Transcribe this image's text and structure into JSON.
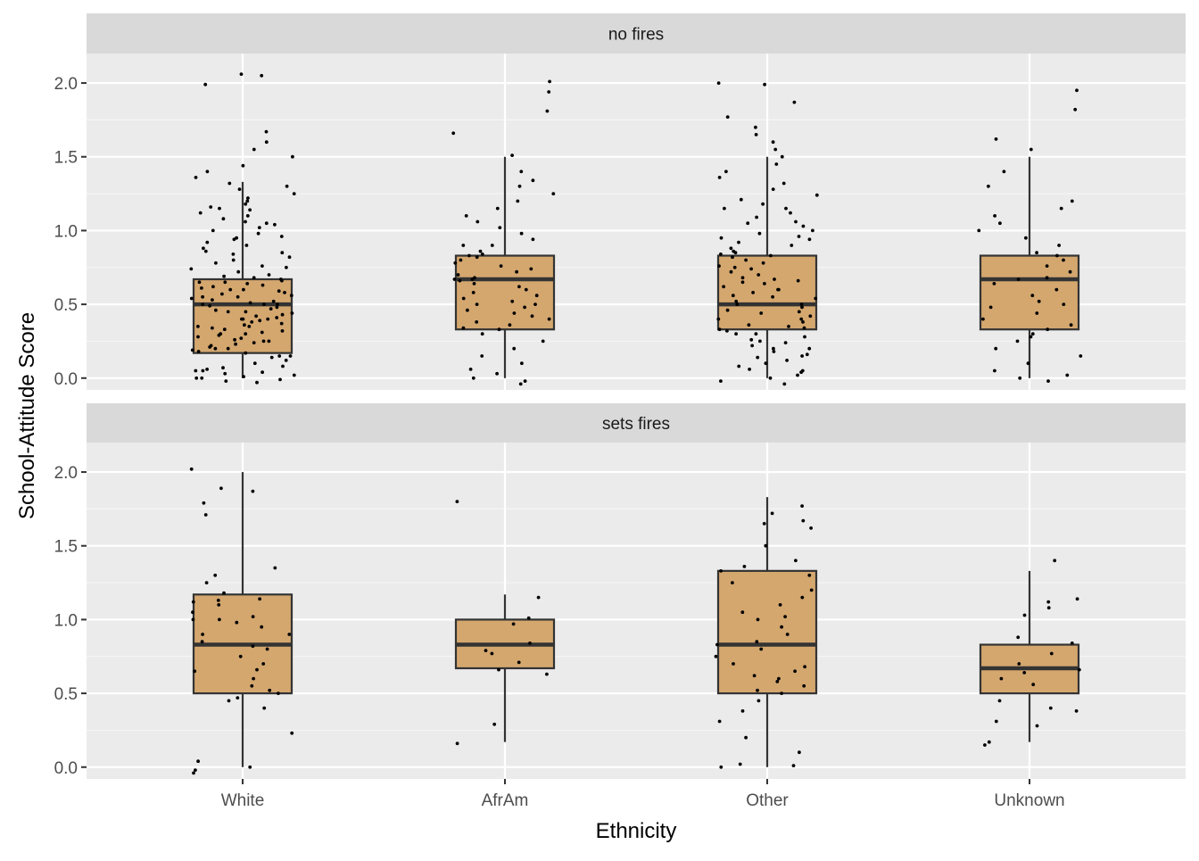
{
  "chart_data": {
    "type": "boxplot",
    "xlabel": "Ethnicity",
    "ylabel": "School-Attitude Score",
    "categories": [
      "White",
      "AfrAm",
      "Other",
      "Unknown"
    ],
    "y_ticks": [
      "0.0",
      "0.5",
      "1.0",
      "1.5",
      "2.0"
    ],
    "ylim": [
      -0.08,
      2.2
    ],
    "grid": true,
    "colors": {
      "panel_bg": "#EBEBEB",
      "strip_bg": "#D9D9D9",
      "box_fill": "#D4A76F",
      "box_stroke": "#333333",
      "grid": "#FFFFFF",
      "points": "#000000"
    },
    "panels": [
      {
        "label": "no fires",
        "boxes": [
          {
            "category": "White",
            "lower_whisker": 0.0,
            "q1": 0.17,
            "median": 0.5,
            "q3": 0.67,
            "upper_whisker": 1.33
          },
          {
            "category": "AfrAm",
            "lower_whisker": 0.0,
            "q1": 0.33,
            "median": 0.67,
            "q3": 0.83,
            "upper_whisker": 1.5
          },
          {
            "category": "Other",
            "lower_whisker": 0.0,
            "q1": 0.33,
            "median": 0.5,
            "q3": 0.83,
            "upper_whisker": 1.5
          },
          {
            "category": "Unknown",
            "lower_whisker": 0.0,
            "q1": 0.33,
            "median": 0.67,
            "q3": 0.83,
            "upper_whisker": 1.5
          }
        ],
        "points": [
          [
            -0.03,
            -0.02,
            -0.01,
            0.0,
            0.01,
            0.02,
            0.03,
            0.04,
            0.05,
            0.06,
            0.07,
            0.08,
            0.1,
            0.12,
            0.14,
            0.15,
            0.17,
            0.18,
            0.19,
            0.2,
            0.21,
            0.22,
            0.23,
            0.24,
            0.25,
            0.26,
            0.27,
            0.28,
            0.29,
            0.3,
            0.31,
            0.32,
            0.33,
            0.34,
            0.35,
            0.36,
            0.37,
            0.38,
            0.39,
            0.4,
            0.41,
            0.42,
            0.43,
            0.44,
            0.45,
            0.46,
            0.47,
            0.48,
            0.49,
            0.5,
            0.51,
            0.52,
            0.53,
            0.54,
            0.55,
            0.56,
            0.57,
            0.58,
            0.59,
            0.6,
            0.61,
            0.62,
            0.63,
            0.64,
            0.65,
            0.66,
            0.67,
            0.68,
            0.69,
            0.7,
            0.72,
            0.74,
            0.76,
            0.78,
            0.8,
            0.82,
            0.84,
            0.86,
            0.88,
            0.9,
            0.92,
            0.94,
            0.96,
            0.98,
            1.0,
            1.02,
            1.04,
            1.06,
            1.08,
            1.1,
            1.12,
            1.14,
            1.16,
            1.18,
            1.2,
            1.22,
            1.25,
            1.28,
            1.3,
            1.32,
            1.36,
            1.4,
            1.44,
            1.5,
            1.55,
            1.6,
            1.67,
            1.99,
            2.05,
            2.06,
            0.0,
            0.05,
            0.15,
            0.25,
            0.35,
            0.45,
            0.55,
            0.65,
            0.75,
            0.85,
            0.95,
            1.05,
            1.15,
            0.3,
            0.4,
            0.5,
            0.6,
            0.5,
            0.4,
            0.2
          ],
          [
            -0.04,
            -0.02,
            0.0,
            0.03,
            0.06,
            0.1,
            0.15,
            0.2,
            0.25,
            0.3,
            0.34,
            0.38,
            0.42,
            0.46,
            0.5,
            0.54,
            0.58,
            0.62,
            0.66,
            0.7,
            0.74,
            0.78,
            0.82,
            0.86,
            0.9,
            0.94,
            0.98,
            1.02,
            1.06,
            1.1,
            1.15,
            1.2,
            1.25,
            1.3,
            1.34,
            1.4,
            1.51,
            1.66,
            1.81,
            1.94,
            2.01,
            0.36,
            0.44,
            0.52,
            0.6,
            0.68,
            0.76,
            0.84,
            0.64,
            0.56,
            0.48,
            0.72,
            0.8,
            0.4,
            0.33,
            0.67,
            0.67,
            0.5,
            0.83,
            0.9
          ],
          [
            -0.04,
            -0.02,
            0.0,
            0.02,
            0.04,
            0.06,
            0.08,
            0.1,
            0.12,
            0.14,
            0.16,
            0.18,
            0.2,
            0.22,
            0.24,
            0.26,
            0.28,
            0.3,
            0.32,
            0.34,
            0.36,
            0.38,
            0.4,
            0.42,
            0.44,
            0.46,
            0.48,
            0.5,
            0.52,
            0.54,
            0.56,
            0.58,
            0.6,
            0.62,
            0.64,
            0.66,
            0.68,
            0.7,
            0.72,
            0.74,
            0.76,
            0.78,
            0.8,
            0.82,
            0.84,
            0.86,
            0.88,
            0.9,
            0.92,
            0.94,
            0.96,
            0.98,
            1.0,
            1.03,
            1.06,
            1.09,
            1.12,
            1.15,
            1.18,
            1.21,
            1.24,
            1.28,
            1.32,
            1.36,
            1.4,
            1.45,
            1.5,
            1.55,
            1.6,
            1.65,
            1.7,
            1.77,
            1.87,
            1.99,
            2.0,
            0.05,
            0.15,
            0.25,
            0.35,
            0.45,
            0.55,
            0.65,
            0.75,
            0.85,
            0.95,
            1.05,
            1.15,
            0.33,
            0.5,
            0.67,
            0.83,
            0.4,
            0.6,
            0.3,
            0.2
          ],
          [
            -0.02,
            0.0,
            0.02,
            0.05,
            0.1,
            0.15,
            0.2,
            0.25,
            0.28,
            0.3,
            0.33,
            0.36,
            0.4,
            0.44,
            0.48,
            0.52,
            0.56,
            0.6,
            0.64,
            0.68,
            0.72,
            0.76,
            0.8,
            0.85,
            0.9,
            0.95,
            1.0,
            1.05,
            1.1,
            1.15,
            1.2,
            1.3,
            1.4,
            1.55,
            1.62,
            1.82,
            1.95,
            0.5,
            0.67,
            0.83
          ]
        ]
      },
      {
        "label": "sets fires",
        "boxes": [
          {
            "category": "White",
            "lower_whisker": 0.0,
            "q1": 0.5,
            "median": 0.83,
            "q3": 1.17,
            "upper_whisker": 2.0
          },
          {
            "category": "AfrAm",
            "lower_whisker": 0.17,
            "q1": 0.67,
            "median": 0.83,
            "q3": 1.0,
            "upper_whisker": 1.17
          },
          {
            "category": "Other",
            "lower_whisker": 0.0,
            "q1": 0.5,
            "median": 0.83,
            "q3": 1.33,
            "upper_whisker": 1.83
          },
          {
            "category": "Unknown",
            "lower_whisker": 0.17,
            "q1": 0.5,
            "median": 0.67,
            "q3": 0.83,
            "upper_whisker": 1.33
          }
        ],
        "points": [
          [
            -0.04,
            -0.02,
            0.0,
            0.04,
            0.23,
            0.4,
            0.45,
            0.5,
            0.52,
            0.6,
            0.65,
            0.7,
            0.75,
            0.8,
            0.85,
            0.9,
            0.95,
            1.0,
            1.02,
            1.05,
            1.1,
            1.12,
            1.14,
            1.18,
            1.25,
            1.3,
            1.35,
            1.71,
            1.79,
            1.87,
            1.89,
            2.02,
            0.66,
            0.82,
            0.98,
            1.13,
            0.47,
            0.55,
            0.9,
            1.0
          ],
          [
            0.16,
            0.29,
            0.63,
            0.66,
            0.71,
            0.77,
            0.79,
            0.84,
            0.97,
            1.01,
            1.15,
            1.8
          ],
          [
            0.0,
            0.01,
            0.02,
            0.1,
            0.2,
            0.31,
            0.38,
            0.5,
            0.52,
            0.55,
            0.6,
            0.62,
            0.65,
            0.7,
            0.75,
            0.8,
            0.83,
            0.85,
            0.9,
            0.95,
            1.0,
            1.02,
            1.05,
            1.1,
            1.15,
            1.2,
            1.25,
            1.3,
            1.33,
            1.36,
            1.4,
            1.5,
            1.62,
            1.65,
            1.67,
            1.72,
            1.77,
            0.45,
            0.58,
            0.68
          ],
          [
            0.15,
            0.17,
            0.28,
            0.31,
            0.38,
            0.4,
            0.45,
            0.56,
            0.6,
            0.66,
            0.7,
            0.77,
            0.84,
            0.88,
            1.03,
            1.08,
            1.12,
            1.14,
            1.4,
            0.64
          ]
        ]
      }
    ]
  }
}
